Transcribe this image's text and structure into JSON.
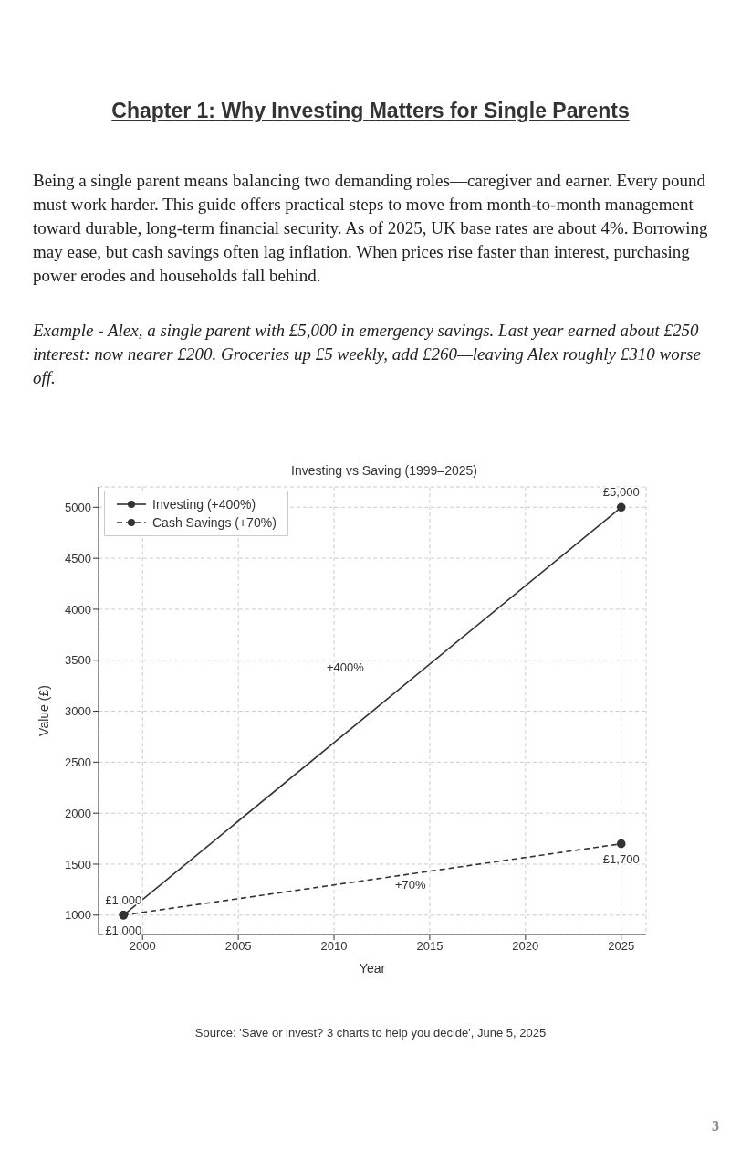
{
  "chart_data": {
    "type": "line",
    "title": "Investing vs Saving (1999–2025)",
    "xlabel": "Year",
    "ylabel": "Value (£)",
    "annotations": [
      "Chapter 1: Why Investing Matters for Single Parents",
      "Being a single parent means balancing two demanding roles—caregiver and earner. Every pound must work harder. This guide offers practical steps to move from month-to-month management toward durable, long-term financial security. As of 2025, UK base rates are about 4%. Borrowing may ease, but cash savings often lag inflation. When prices rise faster than interest, purchasing power erodes and households fall behind.",
      "Example - Alex, a single parent with £5,000 in emergency savings. Last year earned about £250 interest: now nearer £200. Groceries up £5 weekly, add £260—leaving Alex roughly £310 worse off.",
      "Source: 'Save or invest? 3 charts to help you decide', June 5, 2025",
      "3",
      "+400%",
      "+70%"
    ],
    "series": [
      {
        "name": "Investing (+400%)",
        "color": "#333333",
        "values": [
          1000,
          5000
        ],
        "value_labels": [
          "£1,000",
          "£5,000"
        ],
        "line_style": "solid"
      },
      {
        "name": "Cash Savings (+70%)",
        "color": "#333333",
        "values": [
          1000,
          1700
        ],
        "value_labels": [
          "£1,000",
          "£1,700"
        ],
        "line_style": "dashed"
      }
    ],
    "x": [
      1999,
      2025
    ],
    "xlim": [
      1997.7,
      2026.3
    ],
    "xticks": [
      2000,
      2005,
      2010,
      2015,
      2020,
      2025
    ],
    "ylim": [
      810,
      5200
    ],
    "yticks": [
      1000,
      1500,
      2000,
      2500,
      3000,
      3500,
      4000,
      4500,
      5000
    ],
    "grid": true,
    "legend": "top left",
    "marker": "circle"
  }
}
